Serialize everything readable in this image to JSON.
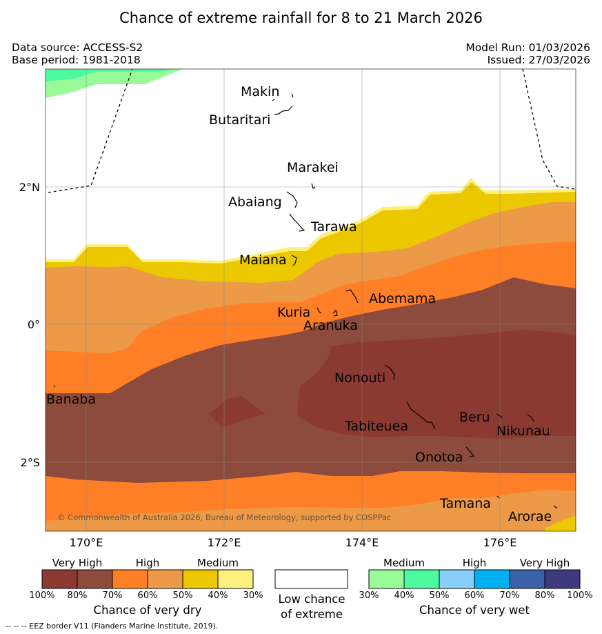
{
  "title": "Chance of extreme rainfall for 8 to 21 March 2026",
  "meta": {
    "data_source": "Data source: ACCESS-S2",
    "base_period": "Base period: 1981-2018",
    "model_run": "Model Run: 01/03/2026",
    "issued": "Issued: 27/03/2026"
  },
  "axes": {
    "x_ticks": [
      "170°E",
      "172°E",
      "174°E",
      "176°E"
    ],
    "y_ticks": [
      "2°N",
      "0°",
      "2°S"
    ]
  },
  "islands": [
    "Makin",
    "Butaritari",
    "Marakei",
    "Abaiang",
    "Tarawa",
    "Maiana",
    "Abemama",
    "Kuria",
    "Aranuka",
    "Nonouti",
    "Banaba",
    "Tabiteuea",
    "Beru",
    "Nikunau",
    "Onotoa",
    "Tamana",
    "Arorae"
  ],
  "copyright": "© Commonwealth of Australia 2026, Bureau of Meteorology, supported by COSPPac",
  "legend": {
    "dry": {
      "headers": [
        "Very High",
        "High",
        "Medium"
      ],
      "ticks": [
        "100%",
        "80%",
        "70%",
        "60%",
        "50%",
        "40%",
        "30%"
      ],
      "colors": [
        "#8b3a32",
        "#8c4b3c",
        "#ff7f27",
        "#ec9a48",
        "#ecc800",
        "#fdf07e"
      ],
      "caption": "Chance of very dry"
    },
    "low": {
      "line1": "Low chance",
      "line2": "of extreme"
    },
    "wet": {
      "headers": [
        "Medium",
        "High",
        "Very High"
      ],
      "ticks": [
        "30%",
        "40%",
        "50%",
        "60%",
        "70%",
        "80%",
        "100%"
      ],
      "colors": [
        "#98fb98",
        "#4dfaa0",
        "#87cefa",
        "#00b0f0",
        "#3a62a6",
        "#3e3a80"
      ],
      "caption": "Chance of very wet"
    }
  },
  "footnote": "-- -- -- EEZ border V11 (Flanders Marine Institute, 2019)."
}
